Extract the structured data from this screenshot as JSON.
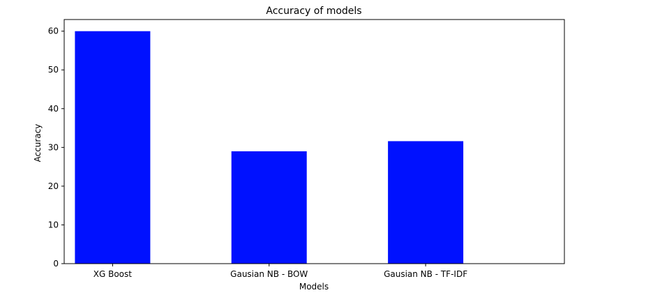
{
  "chart_data": {
    "type": "bar",
    "title": "Accuracy of models",
    "xlabel": "Models",
    "ylabel": "Accuracy",
    "categories": [
      "XG Boost",
      "Gausian NB - BOW",
      "Gausian NB - TF-IDF"
    ],
    "values": [
      60,
      29,
      31.6
    ],
    "ylim": [
      0,
      63
    ],
    "yticks": [
      0,
      10,
      20,
      30,
      40,
      50,
      60
    ],
    "bar_color": "#0011ff",
    "grid": false,
    "legend": "none"
  }
}
